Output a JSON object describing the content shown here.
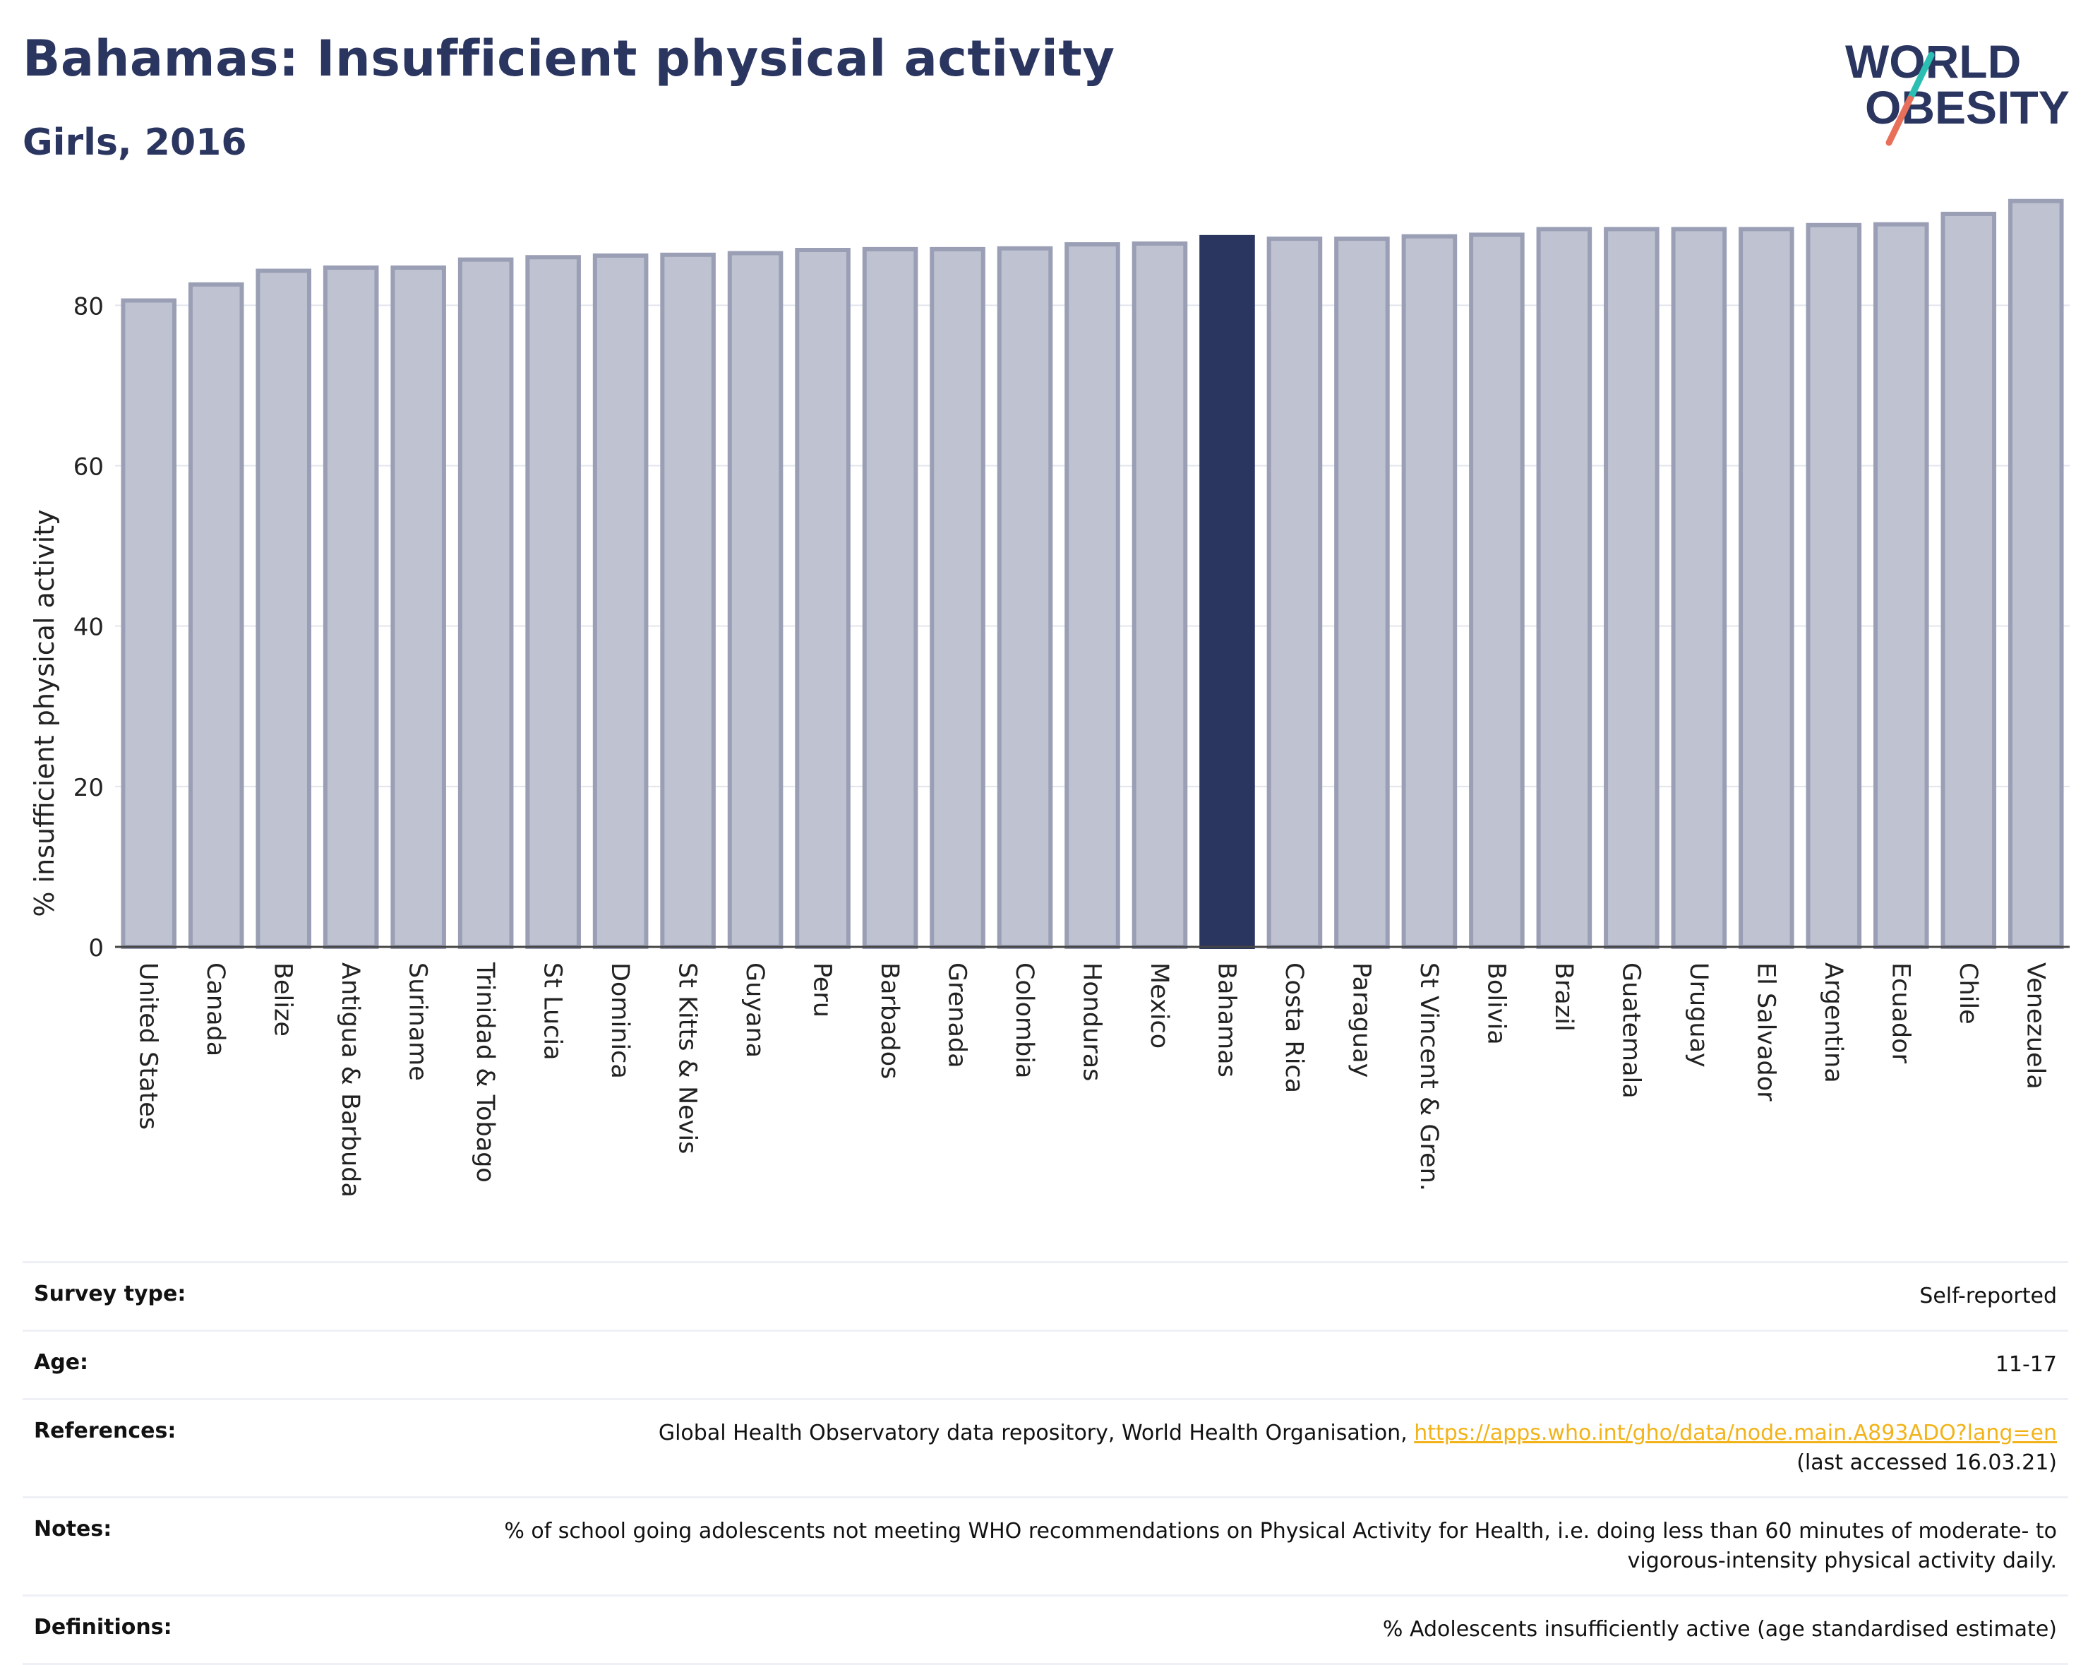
{
  "header": {
    "title": "Bahamas: Insufficient physical activity",
    "subtitle": "Girls, 2016"
  },
  "logo": {
    "line1": "WORLD",
    "line2": "OBESITY",
    "colors": {
      "text": "#2a3560",
      "slash_top": "#2bbfb3",
      "slash_bottom": "#e8705a"
    }
  },
  "colors": {
    "bar_default": "#bfc2d0",
    "bar_border": "#9a9fb5",
    "bar_highlight": "#2a3560",
    "axis_text": "#222222",
    "grid": "#e3e5ec"
  },
  "chart_data": {
    "type": "bar",
    "title": "Bahamas: Insufficient physical activity",
    "subtitle": "Girls, 2016",
    "xlabel": "",
    "ylabel": "% insufficient physical activity",
    "ylim": [
      0,
      95
    ],
    "yticks": [
      0,
      20,
      40,
      60,
      80
    ],
    "grid": true,
    "highlight": "Bahamas",
    "categories": [
      "United States",
      "Canada",
      "Belize",
      "Antigua & Barbuda",
      "Suriname",
      "Trinidad & Tobago",
      "St Lucia",
      "Dominica",
      "St Kitts & Nevis",
      "Guyana",
      "Peru",
      "Barbados",
      "Grenada",
      "Colombia",
      "Honduras",
      "Mexico",
      "Bahamas",
      "Costa Rica",
      "Paraguay",
      "St Vincent & Gren.",
      "Bolivia",
      "Brazil",
      "Guatemala",
      "Uruguay",
      "El Salvador",
      "Argentina",
      "Ecuador",
      "Chile",
      "Venezuela"
    ],
    "values": [
      80.6,
      82.6,
      84.3,
      84.7,
      84.7,
      85.7,
      86.0,
      86.2,
      86.3,
      86.5,
      86.9,
      87.0,
      87.0,
      87.1,
      87.6,
      87.7,
      88.5,
      88.3,
      88.3,
      88.6,
      88.8,
      89.5,
      89.5,
      89.5,
      89.5,
      90.0,
      90.1,
      91.4,
      93.0
    ]
  },
  "meta": {
    "rows": [
      {
        "key": "Survey type:",
        "value": "Self-reported"
      },
      {
        "key": "Age:",
        "value": "11-17"
      },
      {
        "key": "References:",
        "value": "Global Health Observatory data repository, World Health Organisation, ",
        "link": "https://apps.who.int/gho/data/node.main.A893ADO?lang=en",
        "value2": "(last accessed 16.03.21)"
      },
      {
        "key": "Notes:",
        "value": "% of school going adolescents not meeting WHO recommendations on Physical Activity for Health, i.e. doing less than 60 minutes of moderate- to vigorous-intensity physical activity daily."
      },
      {
        "key": "Definitions:",
        "value": "% Adolescents insufficiently active (age standardised estimate)"
      }
    ]
  }
}
